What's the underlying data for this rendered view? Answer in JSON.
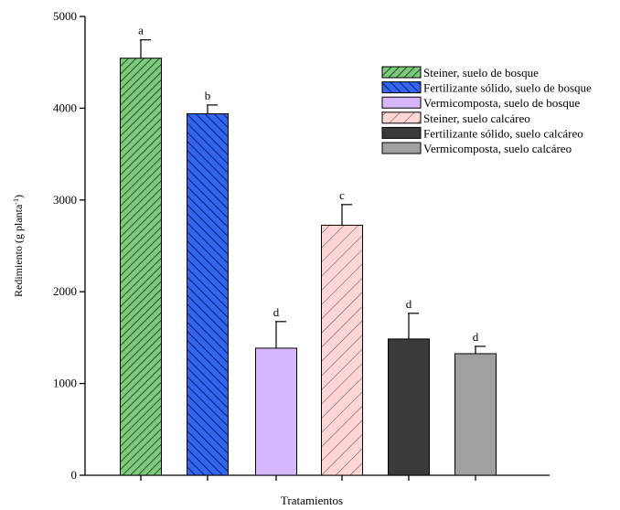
{
  "chart_data": {
    "type": "bar",
    "title": "",
    "xlabel": "Tratamientos",
    "ylabel": "Redimiento (g planta",
    "ylabel_superscript": "-1",
    "ylabel_close": ")",
    "ylim": [
      0,
      5000
    ],
    "yticks": [
      0,
      1000,
      2000,
      3000,
      4000,
      5000
    ],
    "ytick_labels": [
      "0",
      "1000",
      "2000",
      "3000",
      "4000",
      "5000"
    ],
    "grid": false,
    "legend_position": "top-right",
    "categories": [
      "Steiner, suelo de bosque",
      "Fertilizante sólido, suelo de bosque",
      "Vermicomposta, suelo de bosque",
      "Steiner, suelo calcáreo",
      "Fertilizante sólido, suelo calcáreo",
      "Vermicomposta, suelo calcáreo"
    ],
    "values": [
      4545,
      3940,
      1385,
      2725,
      1485,
      1325
    ],
    "errors": [
      200,
      95,
      290,
      225,
      280,
      80
    ],
    "letters": [
      "a",
      "b",
      "d",
      "c",
      "d",
      "d"
    ],
    "fills": [
      "#7fc97f",
      "#3366ee",
      "#d6b6ff",
      "#ffd6d6",
      "#3a3a3a",
      "#a0a0a0"
    ],
    "hatch": [
      "forward-dense",
      "back-dense",
      "none",
      "forward-sparse",
      "none",
      "none"
    ],
    "hatch_colors": [
      "#0a3a0a",
      "#0a0a50",
      "#000000",
      "#7a4a4a",
      "#000000",
      "#000000"
    ]
  }
}
